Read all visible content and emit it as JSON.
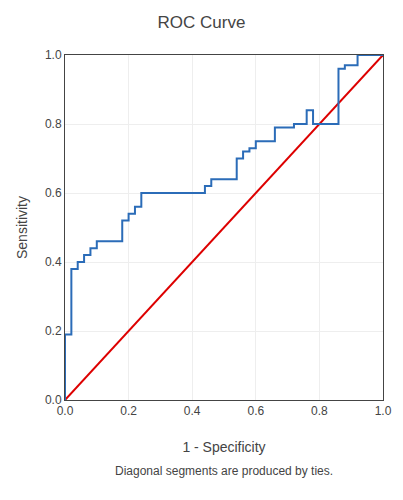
{
  "chart_data": {
    "type": "line",
    "title": "ROC Curve",
    "x_label": "1 - Specificity",
    "y_label": "Sensitivity",
    "annotations": [
      "Diagonal segments are produced by ties."
    ],
    "xlim": [
      0.0,
      1.0
    ],
    "ylim": [
      0.0,
      1.0
    ],
    "xticks": [
      {
        "value": 0,
        "label": "0.0"
      },
      0.2,
      0.4,
      0.6,
      0.8,
      {
        "value": 1,
        "label": "1.0"
      }
    ],
    "yticks": [
      {
        "value": 0,
        "label": "0.0"
      },
      0.2,
      0.4,
      0.6,
      0.8,
      {
        "value": 1,
        "label": "1.0"
      }
    ],
    "grid": true,
    "series": [
      {
        "color": "#DD0000",
        "x": [
          0.0,
          1.0
        ],
        "values": [
          0.0,
          1.0
        ]
      },
      {
        "color": "#2B6CB8",
        "x": [
          0.0,
          0.0,
          0.0,
          0.02,
          0.02,
          0.04,
          0.04,
          0.06,
          0.06,
          0.08,
          0.08,
          0.1,
          0.1,
          0.12,
          0.12,
          0.18,
          0.18,
          0.2,
          0.2,
          0.22,
          0.22,
          0.24,
          0.24,
          0.44,
          0.44,
          0.46,
          0.46,
          0.5,
          0.5,
          0.54,
          0.54,
          0.56,
          0.56,
          0.58,
          0.58,
          0.6,
          0.6,
          0.66,
          0.66,
          0.72,
          0.72,
          0.76,
          0.76,
          0.78,
          0.78,
          0.8,
          0.8,
          0.86,
          0.86,
          0.88,
          0.88,
          0.92,
          0.92,
          1.0
        ],
        "values": [
          0.0,
          0.13,
          0.19,
          0.19,
          0.38,
          0.38,
          0.4,
          0.4,
          0.42,
          0.42,
          0.44,
          0.44,
          0.46,
          0.46,
          0.46,
          0.46,
          0.52,
          0.52,
          0.54,
          0.54,
          0.56,
          0.56,
          0.6,
          0.6,
          0.62,
          0.62,
          0.64,
          0.64,
          0.64,
          0.64,
          0.7,
          0.7,
          0.72,
          0.72,
          0.73,
          0.73,
          0.75,
          0.75,
          0.79,
          0.79,
          0.8,
          0.8,
          0.84,
          0.84,
          0.8,
          0.8,
          0.8,
          0.8,
          0.96,
          0.96,
          0.97,
          0.97,
          1.0,
          1.0
        ]
      }
    ]
  }
}
